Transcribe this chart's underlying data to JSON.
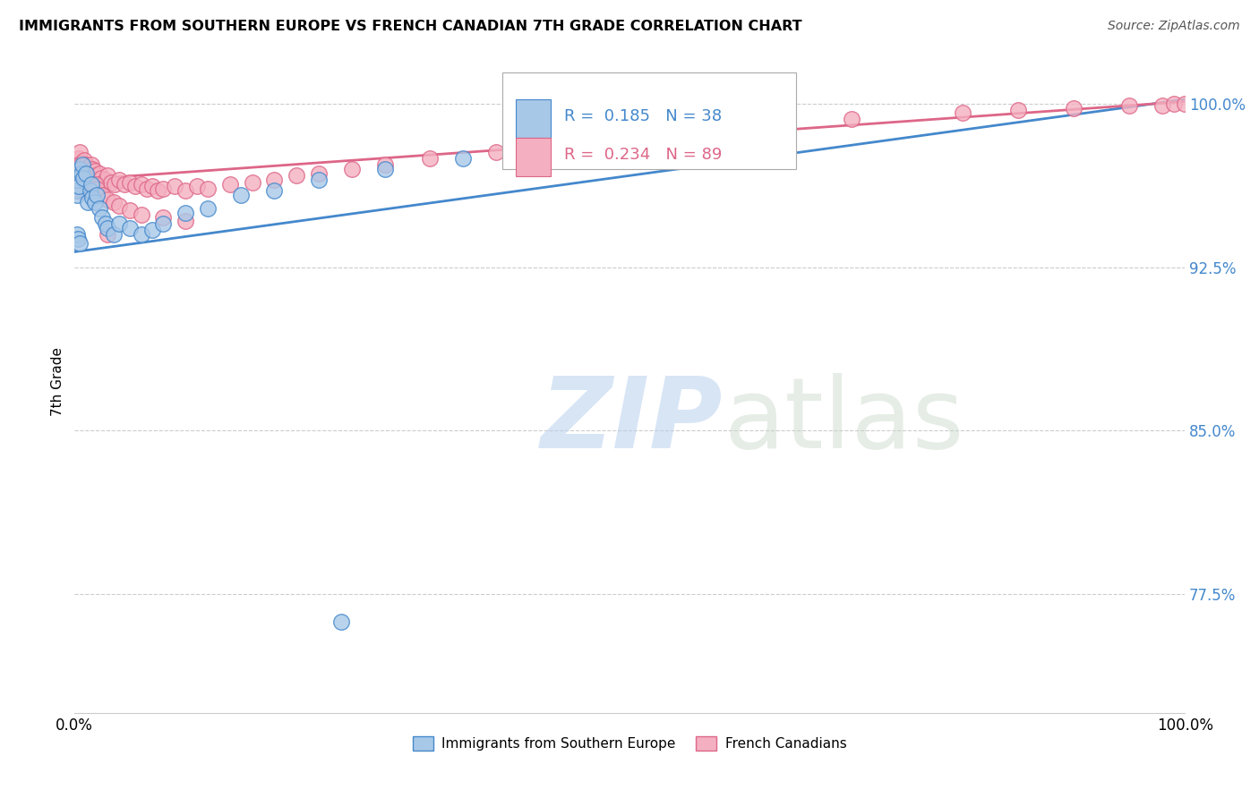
{
  "title": "IMMIGRANTS FROM SOUTHERN EUROPE VS FRENCH CANADIAN 7TH GRADE CORRELATION CHART",
  "source": "Source: ZipAtlas.com",
  "ylabel": "7th Grade",
  "xlim": [
    0.0,
    1.0
  ],
  "ylim": [
    0.72,
    1.025
  ],
  "yticks": [
    0.775,
    0.85,
    0.925,
    1.0
  ],
  "ytick_labels": [
    "77.5%",
    "85.0%",
    "92.5%",
    "100.0%"
  ],
  "xticks": [
    0.0,
    0.2,
    0.4,
    0.6,
    0.8,
    1.0
  ],
  "xtick_labels": [
    "0.0%",
    "",
    "",
    "",
    "",
    "100.0%"
  ],
  "blue_R": 0.185,
  "blue_N": 38,
  "pink_R": 0.234,
  "pink_N": 89,
  "blue_color": "#a8c8e8",
  "pink_color": "#f4b0c0",
  "blue_line_color": "#4488cc",
  "pink_line_color": "#dd6688",
  "blue_scatter_x": [
    0.001,
    0.002,
    0.003,
    0.004,
    0.005,
    0.006,
    0.007,
    0.008,
    0.01,
    0.012,
    0.014,
    0.015,
    0.016,
    0.018,
    0.02,
    0.022,
    0.025,
    0.028,
    0.03,
    0.035,
    0.04,
    0.05,
    0.06,
    0.07,
    0.08,
    0.1,
    0.12,
    0.15,
    0.18,
    0.22,
    0.28,
    0.35,
    0.45,
    0.55,
    0.002,
    0.003,
    0.005,
    0.24
  ],
  "blue_scatter_y": [
    0.96,
    0.958,
    0.965,
    0.962,
    0.97,
    0.968,
    0.972,
    0.966,
    0.968,
    0.955,
    0.96,
    0.963,
    0.957,
    0.955,
    0.958,
    0.952,
    0.948,
    0.945,
    0.943,
    0.94,
    0.945,
    0.943,
    0.94,
    0.942,
    0.945,
    0.95,
    0.952,
    0.958,
    0.96,
    0.965,
    0.97,
    0.975,
    0.985,
    0.998,
    0.94,
    0.938,
    0.936,
    0.762
  ],
  "pink_scatter_x": [
    0.001,
    0.002,
    0.003,
    0.004,
    0.005,
    0.006,
    0.007,
    0.008,
    0.009,
    0.01,
    0.011,
    0.012,
    0.013,
    0.014,
    0.015,
    0.016,
    0.017,
    0.018,
    0.019,
    0.02,
    0.022,
    0.024,
    0.026,
    0.028,
    0.03,
    0.033,
    0.036,
    0.04,
    0.045,
    0.05,
    0.055,
    0.06,
    0.065,
    0.07,
    0.075,
    0.08,
    0.09,
    0.1,
    0.11,
    0.12,
    0.14,
    0.16,
    0.18,
    0.2,
    0.22,
    0.25,
    0.28,
    0.32,
    0.38,
    0.45,
    0.001,
    0.002,
    0.003,
    0.004,
    0.005,
    0.006,
    0.007,
    0.008,
    0.009,
    0.01,
    0.011,
    0.012,
    0.013,
    0.014,
    0.015,
    0.016,
    0.017,
    0.018,
    0.019,
    0.02,
    0.025,
    0.03,
    0.035,
    0.04,
    0.05,
    0.06,
    0.08,
    0.1,
    0.03,
    0.55,
    0.6,
    0.7,
    0.8,
    0.85,
    0.9,
    0.95,
    0.98,
    0.99,
    1.0
  ],
  "pink_scatter_y": [
    0.97,
    0.968,
    0.972,
    0.975,
    0.978,
    0.973,
    0.971,
    0.969,
    0.974,
    0.972,
    0.968,
    0.971,
    0.969,
    0.966,
    0.972,
    0.97,
    0.967,
    0.969,
    0.965,
    0.967,
    0.968,
    0.966,
    0.964,
    0.965,
    0.967,
    0.964,
    0.963,
    0.965,
    0.963,
    0.964,
    0.962,
    0.963,
    0.961,
    0.962,
    0.96,
    0.961,
    0.962,
    0.96,
    0.962,
    0.961,
    0.963,
    0.964,
    0.965,
    0.967,
    0.968,
    0.97,
    0.972,
    0.975,
    0.978,
    0.982,
    0.962,
    0.96,
    0.963,
    0.961,
    0.964,
    0.962,
    0.96,
    0.963,
    0.961,
    0.96,
    0.962,
    0.961,
    0.96,
    0.963,
    0.961,
    0.96,
    0.962,
    0.96,
    0.963,
    0.961,
    0.958,
    0.956,
    0.955,
    0.953,
    0.951,
    0.949,
    0.948,
    0.946,
    0.94,
    0.988,
    0.99,
    0.993,
    0.996,
    0.997,
    0.998,
    0.999,
    0.999,
    1.0,
    1.0
  ],
  "legend_R_blue": "R =  0.185",
  "legend_N_blue": "N = 38",
  "legend_R_pink": "R =  0.234",
  "legend_N_pink": "N = 89",
  "watermark_zip_color": "#c0d8f0",
  "watermark_atlas_color": "#b8d0e8",
  "background_color": "#ffffff",
  "grid_color": "#cccccc"
}
